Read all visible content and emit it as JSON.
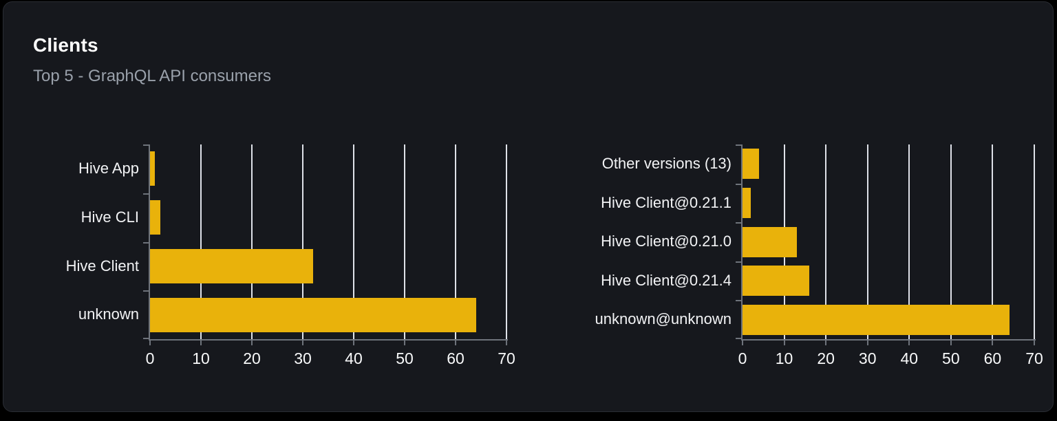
{
  "card": {
    "title": "Clients",
    "subtitle": "Top 5 - GraphQL API consumers"
  },
  "colors": {
    "page_background": "#000000",
    "card_background": "#16181d",
    "card_border": "#2a2d34",
    "bar": "#e9b20b",
    "gridline": "#dfe2e9",
    "axis": "#6e737b",
    "category_label": "#f2f3f5",
    "tick_label": "#f8f9fa",
    "title": "#ffffff",
    "subtitle": "#9aa1ab"
  },
  "chart_data": [
    {
      "type": "bar",
      "orientation": "horizontal",
      "name": "top-clients",
      "categories": [
        "Hive App",
        "Hive CLI",
        "Hive Client",
        "unknown"
      ],
      "values": [
        1,
        2,
        32,
        64
      ],
      "xlim": [
        0,
        70
      ],
      "xticks": [
        0,
        10,
        20,
        30,
        40,
        50,
        60,
        70
      ],
      "grid": true,
      "legend": false,
      "title": "",
      "xlabel": "",
      "ylabel": ""
    },
    {
      "type": "bar",
      "orientation": "horizontal",
      "name": "client-versions",
      "categories": [
        "Other versions (13)",
        "Hive Client@0.21.1",
        "Hive Client@0.21.0",
        "Hive Client@0.21.4",
        "unknown@unknown"
      ],
      "values": [
        4,
        2,
        13,
        16,
        64
      ],
      "xlim": [
        0,
        70
      ],
      "xticks": [
        0,
        10,
        20,
        30,
        40,
        50,
        60,
        70
      ],
      "grid": true,
      "legend": false,
      "title": "",
      "xlabel": "",
      "ylabel": ""
    }
  ]
}
